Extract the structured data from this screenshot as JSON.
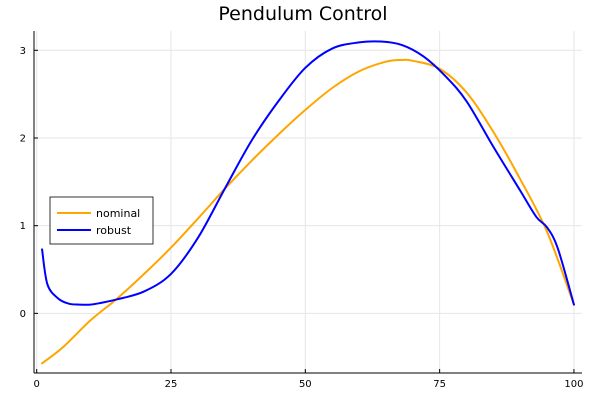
{
  "chart_data": {
    "type": "line",
    "title": "Pendulum Control",
    "xlabel": "",
    "ylabel": "",
    "xlim": [
      -0.5,
      101.5
    ],
    "ylim": [
      -0.68,
      3.22
    ],
    "xticks": [
      0,
      25,
      50,
      75,
      100
    ],
    "yticks": [
      0,
      1,
      2,
      3
    ],
    "grid": true,
    "legend_position": "center-left",
    "series": [
      {
        "name": "nominal",
        "color": "#FFA500",
        "x": [
          1,
          5,
          10,
          15,
          20,
          25,
          30,
          35,
          40,
          45,
          50,
          55,
          60,
          65,
          68,
          70,
          75,
          80,
          85,
          90,
          95,
          100
        ],
        "y": [
          -0.57,
          -0.38,
          -0.08,
          0.17,
          0.45,
          0.75,
          1.08,
          1.42,
          1.74,
          2.04,
          2.32,
          2.57,
          2.76,
          2.87,
          2.89,
          2.88,
          2.79,
          2.52,
          2.07,
          1.53,
          0.93,
          0.1
        ]
      },
      {
        "name": "robust",
        "color": "#0000FF",
        "x": [
          1,
          2,
          4,
          6,
          8,
          10,
          12,
          15,
          20,
          25,
          30,
          35,
          40,
          45,
          50,
          55,
          60,
          64,
          68,
          72,
          76,
          80,
          85,
          90,
          93,
          95,
          97,
          100
        ],
        "y": [
          0.73,
          0.33,
          0.17,
          0.11,
          0.1,
          0.1,
          0.12,
          0.16,
          0.25,
          0.45,
          0.86,
          1.42,
          1.97,
          2.42,
          2.8,
          3.02,
          3.09,
          3.1,
          3.06,
          2.93,
          2.71,
          2.42,
          1.9,
          1.4,
          1.1,
          0.98,
          0.74,
          0.1
        ]
      }
    ]
  }
}
